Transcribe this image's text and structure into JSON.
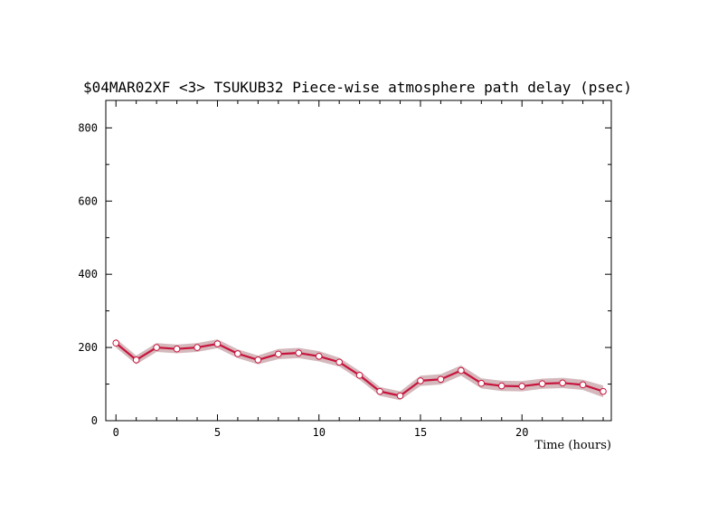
{
  "chart_data": {
    "type": "line",
    "title": "$04MAR02XF <3>  TSUKUB32  Piece-wise atmosphere path delay (psec)",
    "xlabel": "Time (hours)",
    "ylabel": "",
    "xlim": [
      -0.5,
      24.4
    ],
    "ylim": [
      0,
      875
    ],
    "xticks": [
      0,
      5,
      10,
      15,
      20
    ],
    "yticks": [
      0,
      200,
      400,
      600,
      800
    ],
    "grid": false,
    "colors": {
      "line": "#c8143c",
      "band": "#d4b8bc",
      "marker_fill": "#ffffff",
      "marker_edge": "#c8143c"
    },
    "series": [
      {
        "x": [
          0,
          1,
          2,
          3,
          4,
          5,
          6,
          7,
          8,
          9,
          10,
          11,
          12,
          13,
          14,
          15,
          16,
          17,
          18,
          19,
          20,
          21,
          22,
          23,
          24
        ],
        "values": [
          212,
          166,
          200,
          196,
          200,
          210,
          183,
          166,
          182,
          185,
          176,
          160,
          124,
          80,
          68,
          109,
          113,
          137,
          102,
          95,
          94,
          101,
          103,
          98,
          80
        ],
        "band": [
          12,
          12,
          12,
          12,
          12,
          12,
          12,
          12,
          14,
          14,
          14,
          12,
          12,
          12,
          12,
          14,
          14,
          14,
          14,
          14,
          14,
          14,
          14,
          14,
          16
        ]
      }
    ]
  }
}
